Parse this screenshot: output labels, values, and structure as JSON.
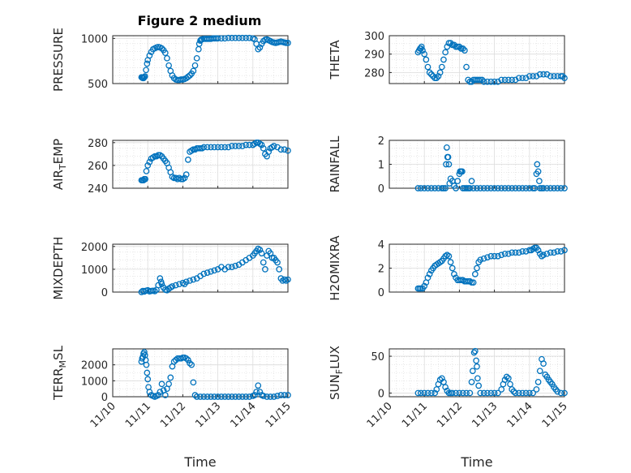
{
  "figure": {
    "title": "Figure 2 medium",
    "x_tick_labels": [
      "11/10",
      "11/11",
      "11/12",
      "11/13",
      "11/14",
      "11/15"
    ],
    "xlabel": "Time",
    "marker_color": "#0072BD"
  },
  "chart_data": [
    {
      "type": "scatter",
      "title": "Figure 2 medium",
      "ylabel": "PRESSURE",
      "ylim": [
        500,
        1030
      ],
      "yticks": [
        500,
        1000
      ],
      "ytick_labels": [
        "500",
        "1000"
      ],
      "x_dates": [
        "11/10",
        "11/11",
        "11/12",
        "11/13",
        "11/14",
        "11/15"
      ],
      "x": [
        0.82,
        0.84,
        0.86,
        0.88,
        0.9,
        0.92,
        0.95,
        0.98,
        1.0,
        1.05,
        1.1,
        1.15,
        1.2,
        1.25,
        1.3,
        1.35,
        1.4,
        1.45,
        1.5,
        1.55,
        1.6,
        1.65,
        1.7,
        1.75,
        1.8,
        1.85,
        1.9,
        1.95,
        2.0,
        2.05,
        2.1,
        2.15,
        2.2,
        2.25,
        2.3,
        2.35,
        2.4,
        2.45,
        2.47,
        2.5,
        2.52,
        2.55,
        2.6,
        2.65,
        2.7,
        2.75,
        2.8,
        2.85,
        2.9,
        2.95,
        3.0,
        3.1,
        3.2,
        3.3,
        3.4,
        3.5,
        3.6,
        3.7,
        3.8,
        3.9,
        4.0,
        4.05,
        4.1,
        4.15,
        4.2,
        4.25,
        4.3,
        4.35,
        4.4,
        4.45,
        4.5,
        4.55,
        4.6,
        4.65,
        4.7,
        4.75,
        4.8,
        4.85,
        4.9,
        4.95,
        5.0
      ],
      "y": [
        570,
        565,
        560,
        560,
        570,
        580,
        650,
        720,
        760,
        810,
        850,
        880,
        890,
        900,
        905,
        900,
        890,
        870,
        840,
        780,
        700,
        640,
        590,
        560,
        545,
        540,
        540,
        545,
        545,
        550,
        560,
        575,
        590,
        610,
        640,
        700,
        780,
        880,
        940,
        975,
        985,
        990,
        995,
        995,
        995,
        995,
        995,
        1000,
        1000,
        1000,
        1000,
        1000,
        1000,
        1005,
        1005,
        1005,
        1005,
        1005,
        1005,
        1005,
        1000,
        990,
        940,
        880,
        900,
        940,
        970,
        985,
        990,
        980,
        970,
        960,
        955,
        950,
        955,
        960,
        965,
        960,
        955,
        950,
        950
      ]
    },
    {
      "type": "scatter",
      "ylabel": "THETA",
      "ylim": [
        274,
        300
      ],
      "yticks": [
        280,
        290,
        300
      ],
      "ytick_labels": [
        "280",
        "290",
        "300"
      ],
      "x_dates": [
        "11/10",
        "11/11",
        "11/12",
        "11/13",
        "11/14",
        "11/15"
      ],
      "x": [
        0.82,
        0.85,
        0.88,
        0.9,
        0.92,
        0.95,
        1.0,
        1.05,
        1.1,
        1.15,
        1.2,
        1.25,
        1.3,
        1.35,
        1.4,
        1.45,
        1.5,
        1.55,
        1.6,
        1.65,
        1.7,
        1.75,
        1.8,
        1.85,
        1.9,
        1.95,
        2.0,
        2.05,
        2.1,
        2.15,
        2.2,
        2.25,
        2.3,
        2.35,
        2.4,
        2.45,
        2.5,
        2.55,
        2.6,
        2.65,
        2.7,
        2.8,
        2.9,
        3.0,
        3.1,
        3.2,
        3.3,
        3.4,
        3.5,
        3.6,
        3.7,
        3.8,
        3.9,
        4.0,
        4.1,
        4.2,
        4.3,
        4.4,
        4.5,
        4.6,
        4.7,
        4.8,
        4.9,
        4.95,
        5.0
      ],
      "y": [
        291,
        292,
        293,
        293,
        294,
        292,
        290,
        287,
        283,
        280,
        279,
        278,
        277,
        277,
        278,
        280,
        283,
        287,
        291,
        294,
        296,
        296,
        295,
        295,
        294,
        294,
        294,
        293,
        293,
        292,
        283,
        276,
        275,
        275,
        276,
        276,
        276,
        276,
        276,
        276,
        275,
        275,
        275,
        275,
        275,
        276,
        276,
        276,
        276,
        276,
        277,
        277,
        277,
        278,
        278,
        278,
        279,
        279,
        279,
        278,
        278,
        278,
        278,
        278,
        277
      ]
    },
    {
      "type": "scatter",
      "ylabel": "AIR_TEMP",
      "ylabel_subscript": "T",
      "ylim": [
        240,
        282
      ],
      "yticks": [
        240,
        260,
        280
      ],
      "ytick_labels": [
        "240",
        "260",
        "280"
      ],
      "x_dates": [
        "11/10",
        "11/11",
        "11/12",
        "11/13",
        "11/14",
        "11/15"
      ],
      "x": [
        0.82,
        0.85,
        0.88,
        0.9,
        0.93,
        0.96,
        1.0,
        1.05,
        1.1,
        1.15,
        1.2,
        1.25,
        1.3,
        1.35,
        1.4,
        1.45,
        1.5,
        1.55,
        1.6,
        1.65,
        1.7,
        1.75,
        1.8,
        1.85,
        1.9,
        1.95,
        2.0,
        2.05,
        2.1,
        2.15,
        2.2,
        2.25,
        2.3,
        2.35,
        2.4,
        2.45,
        2.5,
        2.55,
        2.6,
        2.7,
        2.8,
        2.9,
        3.0,
        3.1,
        3.2,
        3.3,
        3.4,
        3.5,
        3.6,
        3.7,
        3.8,
        3.9,
        4.0,
        4.05,
        4.1,
        4.15,
        4.2,
        4.25,
        4.3,
        4.35,
        4.4,
        4.45,
        4.5,
        4.55,
        4.6,
        4.7,
        4.8,
        4.9,
        5.0
      ],
      "y": [
        247,
        247,
        247,
        248,
        248,
        255,
        260,
        263,
        266,
        267,
        268,
        268,
        269,
        269,
        268,
        266,
        264,
        262,
        258,
        254,
        250,
        249,
        249,
        248,
        249,
        248,
        248,
        249,
        252,
        265,
        272,
        273,
        274,
        274,
        275,
        275,
        275,
        275,
        276,
        276,
        276,
        276,
        276,
        276,
        276,
        276,
        277,
        277,
        277,
        277,
        278,
        278,
        278,
        279,
        280,
        280,
        279,
        278,
        275,
        270,
        268,
        272,
        275,
        276,
        277,
        276,
        274,
        274,
        273
      ]
    },
    {
      "type": "scatter",
      "ylabel": "RAINFALL",
      "ylim": [
        0,
        2
      ],
      "yticks": [
        0,
        1,
        2
      ],
      "ytick_labels": [
        "0",
        "1",
        "2"
      ],
      "x_dates": [
        "11/10",
        "11/11",
        "11/12",
        "11/13",
        "11/14",
        "11/15"
      ],
      "x": [
        0.82,
        0.9,
        1.0,
        1.1,
        1.2,
        1.3,
        1.4,
        1.5,
        1.55,
        1.6,
        1.62,
        1.64,
        1.66,
        1.68,
        1.7,
        1.72,
        1.75,
        1.8,
        1.85,
        1.9,
        1.95,
        2.0,
        2.02,
        2.05,
        2.08,
        2.1,
        2.15,
        2.2,
        2.25,
        2.3,
        2.35,
        2.4,
        2.5,
        2.6,
        2.7,
        2.8,
        2.9,
        3.0,
        3.1,
        3.2,
        3.3,
        3.4,
        3.5,
        3.6,
        3.7,
        3.8,
        3.9,
        4.0,
        4.1,
        4.15,
        4.2,
        4.22,
        4.25,
        4.28,
        4.3,
        4.35,
        4.4,
        4.5,
        4.6,
        4.7,
        4.8,
        4.9,
        5.0
      ],
      "y": [
        0,
        0,
        0,
        0,
        0,
        0,
        0,
        0,
        0,
        0,
        1.0,
        1.7,
        1.3,
        1.3,
        1.0,
        0.2,
        0.4,
        0.3,
        0.1,
        0,
        0.3,
        0.6,
        0.7,
        0.7,
        0.7,
        0,
        0,
        0,
        0,
        0,
        0.3,
        0,
        0,
        0,
        0,
        0,
        0,
        0,
        0,
        0,
        0,
        0,
        0,
        0,
        0,
        0,
        0,
        0,
        0,
        0,
        0.6,
        1.0,
        0.7,
        0.3,
        0,
        0,
        0,
        0,
        0,
        0,
        0,
        0,
        0
      ]
    },
    {
      "type": "scatter",
      "ylabel": "MIXDEPTH",
      "ylim": [
        0,
        2100
      ],
      "yticks": [
        0,
        1000,
        2000
      ],
      "ytick_labels": [
        "0",
        "1000",
        "2000"
      ],
      "x_dates": [
        "11/10",
        "11/11",
        "11/12",
        "11/13",
        "11/14",
        "11/15"
      ],
      "x": [
        0.82,
        0.86,
        0.9,
        0.95,
        1.0,
        1.05,
        1.1,
        1.15,
        1.2,
        1.25,
        1.3,
        1.35,
        1.38,
        1.4,
        1.45,
        1.5,
        1.55,
        1.6,
        1.65,
        1.7,
        1.8,
        1.9,
        2.0,
        2.05,
        2.1,
        2.2,
        2.3,
        2.4,
        2.5,
        2.6,
        2.7,
        2.8,
        2.9,
        3.0,
        3.1,
        3.2,
        3.3,
        3.4,
        3.5,
        3.6,
        3.7,
        3.8,
        3.9,
        4.0,
        4.05,
        4.1,
        4.15,
        4.2,
        4.25,
        4.3,
        4.35,
        4.4,
        4.45,
        4.5,
        4.55,
        4.6,
        4.65,
        4.7,
        4.75,
        4.8,
        4.85,
        4.9,
        4.95,
        5.0
      ],
      "y": [
        0,
        50,
        20,
        60,
        80,
        30,
        50,
        60,
        40,
        100,
        300,
        600,
        450,
        350,
        200,
        100,
        80,
        150,
        200,
        250,
        300,
        350,
        400,
        350,
        450,
        500,
        550,
        600,
        700,
        800,
        850,
        900,
        950,
        1000,
        1100,
        1000,
        1100,
        1100,
        1150,
        1200,
        1300,
        1400,
        1500,
        1600,
        1700,
        1800,
        1900,
        1850,
        1700,
        1300,
        1000,
        1600,
        1800,
        1700,
        1500,
        1500,
        1400,
        1300,
        1000,
        600,
        500,
        550,
        500,
        550
      ]
    },
    {
      "type": "scatter",
      "ylabel": "H2OMIXRA",
      "ylim": [
        0,
        4
      ],
      "yticks": [
        0,
        2,
        4
      ],
      "ytick_labels": [
        "0",
        "2",
        "4"
      ],
      "x_dates": [
        "11/10",
        "11/11",
        "11/12",
        "11/13",
        "11/14",
        "11/15"
      ],
      "x": [
        0.82,
        0.86,
        0.9,
        0.95,
        1.0,
        1.05,
        1.1,
        1.15,
        1.2,
        1.25,
        1.3,
        1.35,
        1.4,
        1.45,
        1.5,
        1.55,
        1.6,
        1.65,
        1.7,
        1.75,
        1.8,
        1.85,
        1.9,
        1.95,
        2.0,
        2.05,
        2.1,
        2.15,
        2.2,
        2.25,
        2.3,
        2.35,
        2.4,
        2.45,
        2.5,
        2.55,
        2.6,
        2.7,
        2.8,
        2.9,
        3.0,
        3.1,
        3.2,
        3.3,
        3.4,
        3.5,
        3.6,
        3.7,
        3.8,
        3.9,
        4.0,
        4.05,
        4.1,
        4.15,
        4.2,
        4.25,
        4.3,
        4.35,
        4.4,
        4.5,
        4.6,
        4.7,
        4.8,
        4.9,
        5.0
      ],
      "y": [
        0.3,
        0.3,
        0.3,
        0.3,
        0.5,
        0.8,
        1.2,
        1.5,
        1.8,
        2.0,
        2.2,
        2.3,
        2.4,
        2.5,
        2.6,
        2.8,
        3.0,
        3.1,
        3.0,
        2.5,
        2.0,
        1.5,
        1.2,
        1.0,
        1.0,
        1.0,
        1.0,
        0.9,
        0.9,
        0.9,
        0.9,
        0.8,
        0.8,
        1.5,
        2.0,
        2.5,
        2.7,
        2.8,
        2.9,
        3.0,
        3.0,
        3.0,
        3.1,
        3.2,
        3.2,
        3.3,
        3.3,
        3.3,
        3.4,
        3.4,
        3.5,
        3.5,
        3.6,
        3.7,
        3.7,
        3.5,
        3.2,
        3.0,
        3.1,
        3.2,
        3.3,
        3.3,
        3.4,
        3.4,
        3.5
      ]
    },
    {
      "type": "scatter",
      "ylabel": "TERR_MSL",
      "ylabel_subscript": "M",
      "ylim": [
        0,
        3000
      ],
      "yticks": [
        0,
        1000,
        2000
      ],
      "ytick_labels": [
        "0",
        "1000",
        "2000"
      ],
      "x_dates": [
        "11/10",
        "11/11",
        "11/12",
        "11/13",
        "11/14",
        "11/15"
      ],
      "x": [
        0.82,
        0.84,
        0.86,
        0.88,
        0.9,
        0.92,
        0.94,
        0.96,
        0.98,
        1.0,
        1.02,
        1.05,
        1.1,
        1.15,
        1.2,
        1.25,
        1.3,
        1.35,
        1.4,
        1.45,
        1.5,
        1.55,
        1.6,
        1.65,
        1.7,
        1.75,
        1.8,
        1.85,
        1.9,
        1.95,
        2.0,
        2.05,
        2.1,
        2.15,
        2.2,
        2.25,
        2.3,
        2.35,
        2.4,
        2.5,
        2.6,
        2.7,
        2.8,
        2.9,
        3.0,
        3.1,
        3.2,
        3.3,
        3.4,
        3.5,
        3.6,
        3.7,
        3.8,
        3.9,
        4.0,
        4.05,
        4.1,
        4.15,
        4.2,
        4.25,
        4.3,
        4.4,
        4.5,
        4.6,
        4.7,
        4.8,
        4.9,
        5.0
      ],
      "y": [
        2200,
        2400,
        2500,
        2700,
        2800,
        2600,
        2300,
        2000,
        1500,
        1100,
        600,
        300,
        100,
        50,
        0,
        50,
        100,
        300,
        800,
        400,
        100,
        500,
        800,
        1200,
        1900,
        2200,
        2300,
        2400,
        2400,
        2400,
        2450,
        2450,
        2400,
        2300,
        2100,
        2000,
        900,
        100,
        0,
        0,
        0,
        0,
        0,
        0,
        0,
        0,
        0,
        0,
        0,
        0,
        0,
        0,
        0,
        0,
        50,
        100,
        300,
        700,
        300,
        100,
        50,
        0,
        0,
        0,
        50,
        100,
        100,
        100
      ]
    },
    {
      "type": "scatter",
      "ylabel": "SUN_FLUX",
      "ylabel_subscript": "F",
      "ylim": [
        -5,
        60
      ],
      "yticks": [
        0,
        50
      ],
      "ytick_labels": [
        "0",
        "50"
      ],
      "x_dates": [
        "11/10",
        "11/11",
        "11/12",
        "11/13",
        "11/14",
        "11/15"
      ],
      "x": [
        0.82,
        0.9,
        1.0,
        1.1,
        1.2,
        1.3,
        1.35,
        1.4,
        1.45,
        1.5,
        1.55,
        1.6,
        1.65,
        1.7,
        1.75,
        1.8,
        1.9,
        2.0,
        2.1,
        2.2,
        2.3,
        2.35,
        2.38,
        2.42,
        2.45,
        2.48,
        2.5,
        2.52,
        2.55,
        2.6,
        2.7,
        2.8,
        2.9,
        3.0,
        3.1,
        3.2,
        3.25,
        3.3,
        3.35,
        3.4,
        3.45,
        3.5,
        3.55,
        3.6,
        3.7,
        3.8,
        3.9,
        4.0,
        4.1,
        4.2,
        4.25,
        4.3,
        4.35,
        4.4,
        4.45,
        4.5,
        4.55,
        4.6,
        4.65,
        4.7,
        4.75,
        4.8,
        4.9,
        5.0
      ],
      "y": [
        0,
        0,
        0,
        0,
        0,
        0,
        5,
        12,
        18,
        20,
        15,
        8,
        3,
        0,
        0,
        0,
        0,
        0,
        0,
        0,
        0,
        15,
        30,
        55,
        57,
        44,
        36,
        20,
        10,
        0,
        0,
        0,
        0,
        0,
        0,
        5,
        12,
        18,
        22,
        20,
        12,
        5,
        2,
        0,
        0,
        0,
        0,
        0,
        0,
        5,
        15,
        30,
        46,
        40,
        25,
        22,
        18,
        15,
        12,
        8,
        5,
        2,
        0,
        0
      ]
    }
  ]
}
